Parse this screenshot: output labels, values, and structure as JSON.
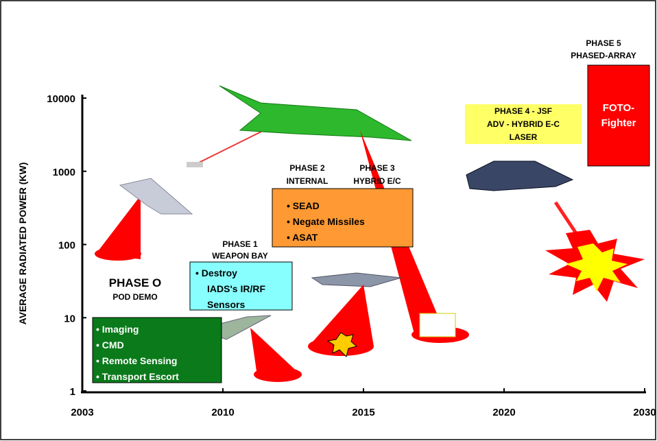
{
  "y_axis": {
    "label": "AVERAGE RADIATED POWER (KW)",
    "scale": "log",
    "ylim": [
      1,
      10000
    ],
    "ticks": [
      1,
      10,
      100,
      1000,
      10000
    ]
  },
  "x_axis": {
    "ticks": [
      "2003",
      "2010",
      "2015",
      "2020",
      "2030"
    ]
  },
  "phase_0": {
    "title": "PHASE O",
    "subtitle": "POD DEMO",
    "items": [
      "• Imaging",
      "• CMD",
      "• Remote Sensing",
      "• Transport Escort"
    ]
  },
  "phase_1": {
    "title": "PHASE 1",
    "subtitle": "WEAPON BAY",
    "items": [
      "• Destroy",
      "IADS's IR/RF",
      "Sensors"
    ]
  },
  "phase_2": {
    "title": "PHASE 2",
    "subtitle": "INTERNAL",
    "items": [
      "• SEAD",
      "• Negate Missiles",
      "• ASAT"
    ]
  },
  "phase_3": {
    "title": "PHASE 3",
    "subtitle": "HYBRID E/C"
  },
  "phase_4": {
    "lines": [
      "PHASE 4 - JSF",
      "ADV - HYBRID E-C",
      "LASER"
    ]
  },
  "phase_5": {
    "title": "PHASE 5",
    "subtitle": "PHASED-ARRAY",
    "lines": [
      "FOTO-",
      "Fighter"
    ]
  }
}
